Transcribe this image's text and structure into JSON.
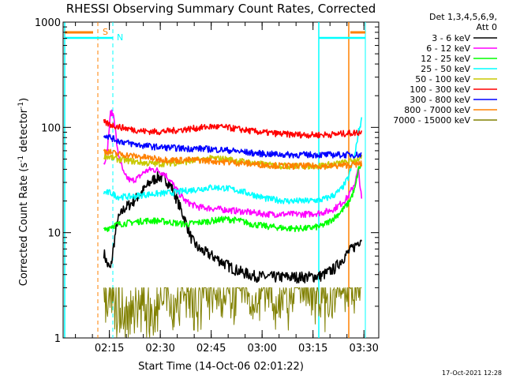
{
  "chart_data": {
    "type": "line",
    "title": "RHESSI Observing Summary Count Rates, Corrected",
    "xlabel": "Start Time (14-Oct-06 02:01:22)",
    "ylabel_main": "Corrected Count Rate (s",
    "ylabel_sup1": "-1",
    "ylabel_mid": " detector",
    "ylabel_sup2": "-1",
    "ylabel_end": ")",
    "footer": "17-Oct-2021 12:28",
    "yscale": "log",
    "ylim": [
      1,
      1000
    ],
    "xlim_minutes": [
      0,
      93
    ],
    "y_ticks": [
      {
        "value": 1,
        "label": "1"
      },
      {
        "value": 10,
        "label": "10"
      },
      {
        "value": 100,
        "label": "100"
      },
      {
        "value": 1000,
        "label": "1000"
      }
    ],
    "x_ticks": [
      {
        "minute": 13.63,
        "label": "02:15"
      },
      {
        "minute": 28.63,
        "label": "02:30"
      },
      {
        "minute": 43.63,
        "label": "02:45"
      },
      {
        "minute": 58.63,
        "label": "03:00"
      },
      {
        "minute": 73.63,
        "label": "03:15"
      },
      {
        "minute": 88.63,
        "label": "03:30"
      }
    ],
    "legend": {
      "header1": "Det 1,3,4,5,6,9,",
      "header2": "Att 0",
      "placement": "top-right"
    },
    "markers": [
      {
        "label": "S",
        "color": "#ff8000"
      },
      {
        "label": "N",
        "color": "#00ffff"
      }
    ],
    "series": [
      {
        "name": "3 - 6 keV",
        "color": "#000000",
        "points": [
          [
            12,
            6.5
          ],
          [
            13,
            5
          ],
          [
            14,
            4.5
          ],
          [
            15,
            8
          ],
          [
            16,
            13
          ],
          [
            18,
            17
          ],
          [
            20,
            19
          ],
          [
            22,
            22
          ],
          [
            24,
            26
          ],
          [
            26,
            31
          ],
          [
            28,
            34
          ],
          [
            30,
            33
          ],
          [
            32,
            27
          ],
          [
            34,
            19
          ],
          [
            36,
            13
          ],
          [
            38,
            8.5
          ],
          [
            40,
            7
          ],
          [
            42,
            6.5
          ],
          [
            44,
            6
          ],
          [
            46,
            5.5
          ],
          [
            48,
            5
          ],
          [
            50,
            4.6
          ],
          [
            52,
            4.3
          ],
          [
            54,
            4.1
          ],
          [
            56,
            3.9
          ],
          [
            60,
            3.8
          ],
          [
            66,
            3.8
          ],
          [
            72,
            3.8
          ],
          [
            76,
            3.9
          ],
          [
            78,
            4.2
          ],
          [
            80,
            4.6
          ],
          [
            82,
            5.5
          ],
          [
            84,
            6.5
          ],
          [
            86,
            7.5
          ],
          [
            88,
            9
          ]
        ]
      },
      {
        "name": "6 - 12 keV",
        "color": "#ff00ff",
        "points": [
          [
            12,
            45
          ],
          [
            13,
            60
          ],
          [
            14,
            140
          ],
          [
            15,
            130
          ],
          [
            16,
            60
          ],
          [
            18,
            35
          ],
          [
            20,
            31
          ],
          [
            22,
            33
          ],
          [
            24,
            38
          ],
          [
            26,
            40
          ],
          [
            28,
            39
          ],
          [
            30,
            36
          ],
          [
            32,
            30
          ],
          [
            34,
            24
          ],
          [
            36,
            20
          ],
          [
            38,
            18.5
          ],
          [
            40,
            17.5
          ],
          [
            44,
            17
          ],
          [
            48,
            16.5
          ],
          [
            52,
            16
          ],
          [
            56,
            15.5
          ],
          [
            60,
            15
          ],
          [
            66,
            15
          ],
          [
            72,
            15
          ],
          [
            76,
            15.5
          ],
          [
            78,
            16
          ],
          [
            80,
            17
          ],
          [
            82,
            19
          ],
          [
            84,
            22
          ],
          [
            86,
            30
          ],
          [
            87,
            40
          ],
          [
            88,
            20
          ]
        ]
      },
      {
        "name": "12 - 25 keV",
        "color": "#00ff00",
        "points": [
          [
            12,
            10.5
          ],
          [
            14,
            11.5
          ],
          [
            16,
            12
          ],
          [
            20,
            12.5
          ],
          [
            24,
            13
          ],
          [
            28,
            13
          ],
          [
            32,
            12.5
          ],
          [
            36,
            12
          ],
          [
            40,
            12.5
          ],
          [
            44,
            13
          ],
          [
            48,
            13.5
          ],
          [
            52,
            13
          ],
          [
            56,
            12
          ],
          [
            60,
            11.5
          ],
          [
            66,
            11
          ],
          [
            72,
            11
          ],
          [
            76,
            11.5
          ],
          [
            78,
            12.5
          ],
          [
            80,
            14
          ],
          [
            82,
            16
          ],
          [
            84,
            19
          ],
          [
            86,
            26
          ],
          [
            87,
            40
          ],
          [
            88,
            45
          ]
        ]
      },
      {
        "name": "25 - 50 keV",
        "color": "#00ffff",
        "points": [
          [
            12,
            24
          ],
          [
            14,
            24
          ],
          [
            16,
            22
          ],
          [
            20,
            22
          ],
          [
            24,
            23
          ],
          [
            28,
            23.5
          ],
          [
            32,
            24
          ],
          [
            36,
            25
          ],
          [
            40,
            26
          ],
          [
            44,
            27
          ],
          [
            48,
            26.5
          ],
          [
            52,
            25
          ],
          [
            56,
            23
          ],
          [
            60,
            21
          ],
          [
            66,
            20
          ],
          [
            72,
            20
          ],
          [
            76,
            20.5
          ],
          [
            78,
            21.5
          ],
          [
            80,
            23
          ],
          [
            82,
            26
          ],
          [
            84,
            33
          ],
          [
            86,
            55
          ],
          [
            87,
            90
          ],
          [
            88,
            120
          ]
        ]
      },
      {
        "name": "50 - 100 keV",
        "color": "#c8c800",
        "points": [
          [
            12,
            54
          ],
          [
            14,
            52
          ],
          [
            16,
            50
          ],
          [
            20,
            48
          ],
          [
            24,
            46
          ],
          [
            28,
            45
          ],
          [
            32,
            46
          ],
          [
            36,
            47
          ],
          [
            40,
            49
          ],
          [
            44,
            51
          ],
          [
            48,
            50
          ],
          [
            52,
            48
          ],
          [
            56,
            46
          ],
          [
            60,
            44
          ],
          [
            66,
            43
          ],
          [
            72,
            43
          ],
          [
            76,
            43.5
          ],
          [
            80,
            45
          ],
          [
            84,
            47
          ],
          [
            87,
            50
          ],
          [
            88,
            52
          ]
        ]
      },
      {
        "name": "100 - 300 keV",
        "color": "#ff0000",
        "points": [
          [
            12,
            112
          ],
          [
            14,
            106
          ],
          [
            16,
            102
          ],
          [
            20,
            96
          ],
          [
            24,
            92
          ],
          [
            28,
            91
          ],
          [
            32,
            93
          ],
          [
            36,
            96
          ],
          [
            40,
            99
          ],
          [
            44,
            102
          ],
          [
            48,
            100
          ],
          [
            52,
            96
          ],
          [
            56,
            92
          ],
          [
            60,
            89
          ],
          [
            66,
            86
          ],
          [
            72,
            85
          ],
          [
            76,
            85
          ],
          [
            80,
            86
          ],
          [
            84,
            88
          ],
          [
            88,
            90
          ]
        ]
      },
      {
        "name": "300 - 800 keV",
        "color": "#0000ff",
        "points": [
          [
            12,
            86
          ],
          [
            14,
            80
          ],
          [
            16,
            75
          ],
          [
            20,
            70
          ],
          [
            24,
            67
          ],
          [
            28,
            65
          ],
          [
            32,
            64
          ],
          [
            36,
            63
          ],
          [
            40,
            63
          ],
          [
            44,
            62
          ],
          [
            48,
            61
          ],
          [
            52,
            59
          ],
          [
            56,
            57
          ],
          [
            60,
            56
          ],
          [
            66,
            55
          ],
          [
            72,
            55
          ],
          [
            76,
            55
          ],
          [
            80,
            55
          ],
          [
            84,
            55
          ],
          [
            88,
            55
          ]
        ]
      },
      {
        "name": "800 - 7000 keV",
        "color": "#ff8000",
        "points": [
          [
            12,
            60
          ],
          [
            14,
            58
          ],
          [
            16,
            56
          ],
          [
            20,
            54
          ],
          [
            24,
            52
          ],
          [
            28,
            50
          ],
          [
            32,
            49
          ],
          [
            36,
            49
          ],
          [
            40,
            49
          ],
          [
            44,
            48
          ],
          [
            48,
            47
          ],
          [
            52,
            46
          ],
          [
            56,
            45
          ],
          [
            60,
            44
          ],
          [
            66,
            43
          ],
          [
            72,
            43
          ],
          [
            76,
            43
          ],
          [
            80,
            43
          ],
          [
            84,
            44
          ],
          [
            88,
            45
          ]
        ]
      },
      {
        "name": "7000 - 15000 keV",
        "color": "#808000",
        "points": [
          [
            12,
            3
          ],
          [
            14,
            2.5
          ],
          [
            16,
            2
          ],
          [
            18,
            1.5
          ],
          [
            20,
            1.8
          ],
          [
            22,
            2.5
          ],
          [
            24,
            2
          ],
          [
            26,
            1.5
          ],
          [
            28,
            2.2
          ],
          [
            30,
            2.8
          ],
          [
            32,
            2
          ],
          [
            34,
            2.5
          ],
          [
            36,
            3
          ],
          [
            38,
            2
          ],
          [
            40,
            2.5
          ],
          [
            44,
            2.8
          ],
          [
            48,
            2.4
          ],
          [
            52,
            2.8
          ],
          [
            56,
            2.2
          ],
          [
            60,
            2.6
          ],
          [
            66,
            2.4
          ],
          [
            72,
            2.8
          ],
          [
            76,
            2.5
          ],
          [
            80,
            2.2
          ],
          [
            84,
            2.8
          ],
          [
            88,
            3
          ]
        ]
      }
    ]
  }
}
